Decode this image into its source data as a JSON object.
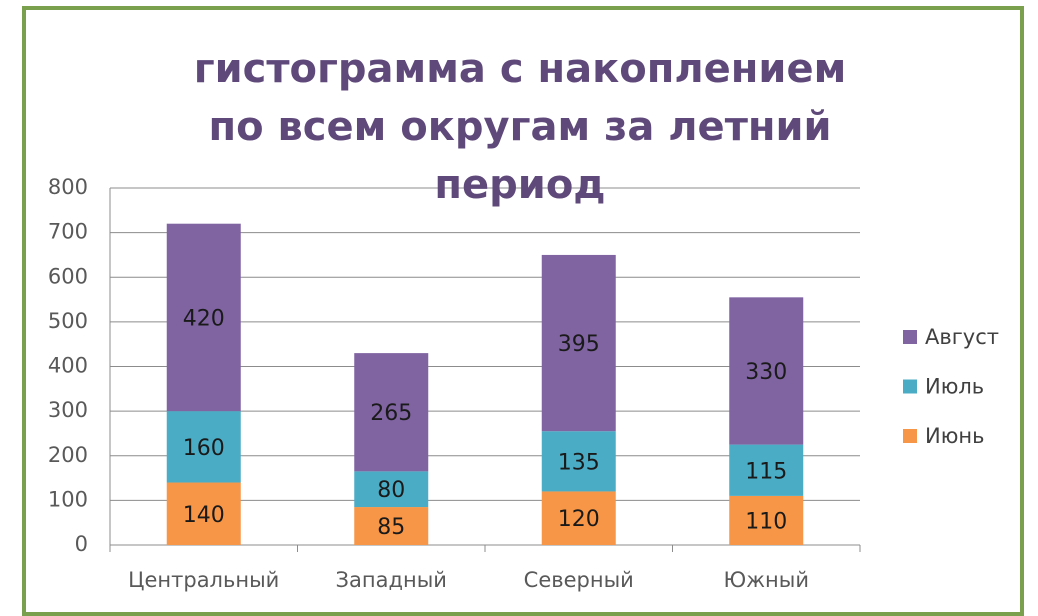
{
  "chart_data": {
    "type": "stacked_bar",
    "title": "гистограмма с накоплением по всем округам за летний период",
    "categories": [
      "Центральный",
      "Западный",
      "Северный",
      "Южный"
    ],
    "series": [
      {
        "name": "Июнь",
        "color": "#f79646",
        "values": [
          140,
          85,
          120,
          110
        ]
      },
      {
        "name": "Июль",
        "color": "#4bacc6",
        "values": [
          160,
          80,
          135,
          115
        ]
      },
      {
        "name": "Август",
        "color": "#8064a2",
        "values": [
          420,
          265,
          395,
          330
        ]
      }
    ],
    "ylim": [
      0,
      800
    ],
    "yticks": [
      0,
      100,
      200,
      300,
      400,
      500,
      600,
      700,
      800
    ],
    "grid": true,
    "legend": "right"
  }
}
